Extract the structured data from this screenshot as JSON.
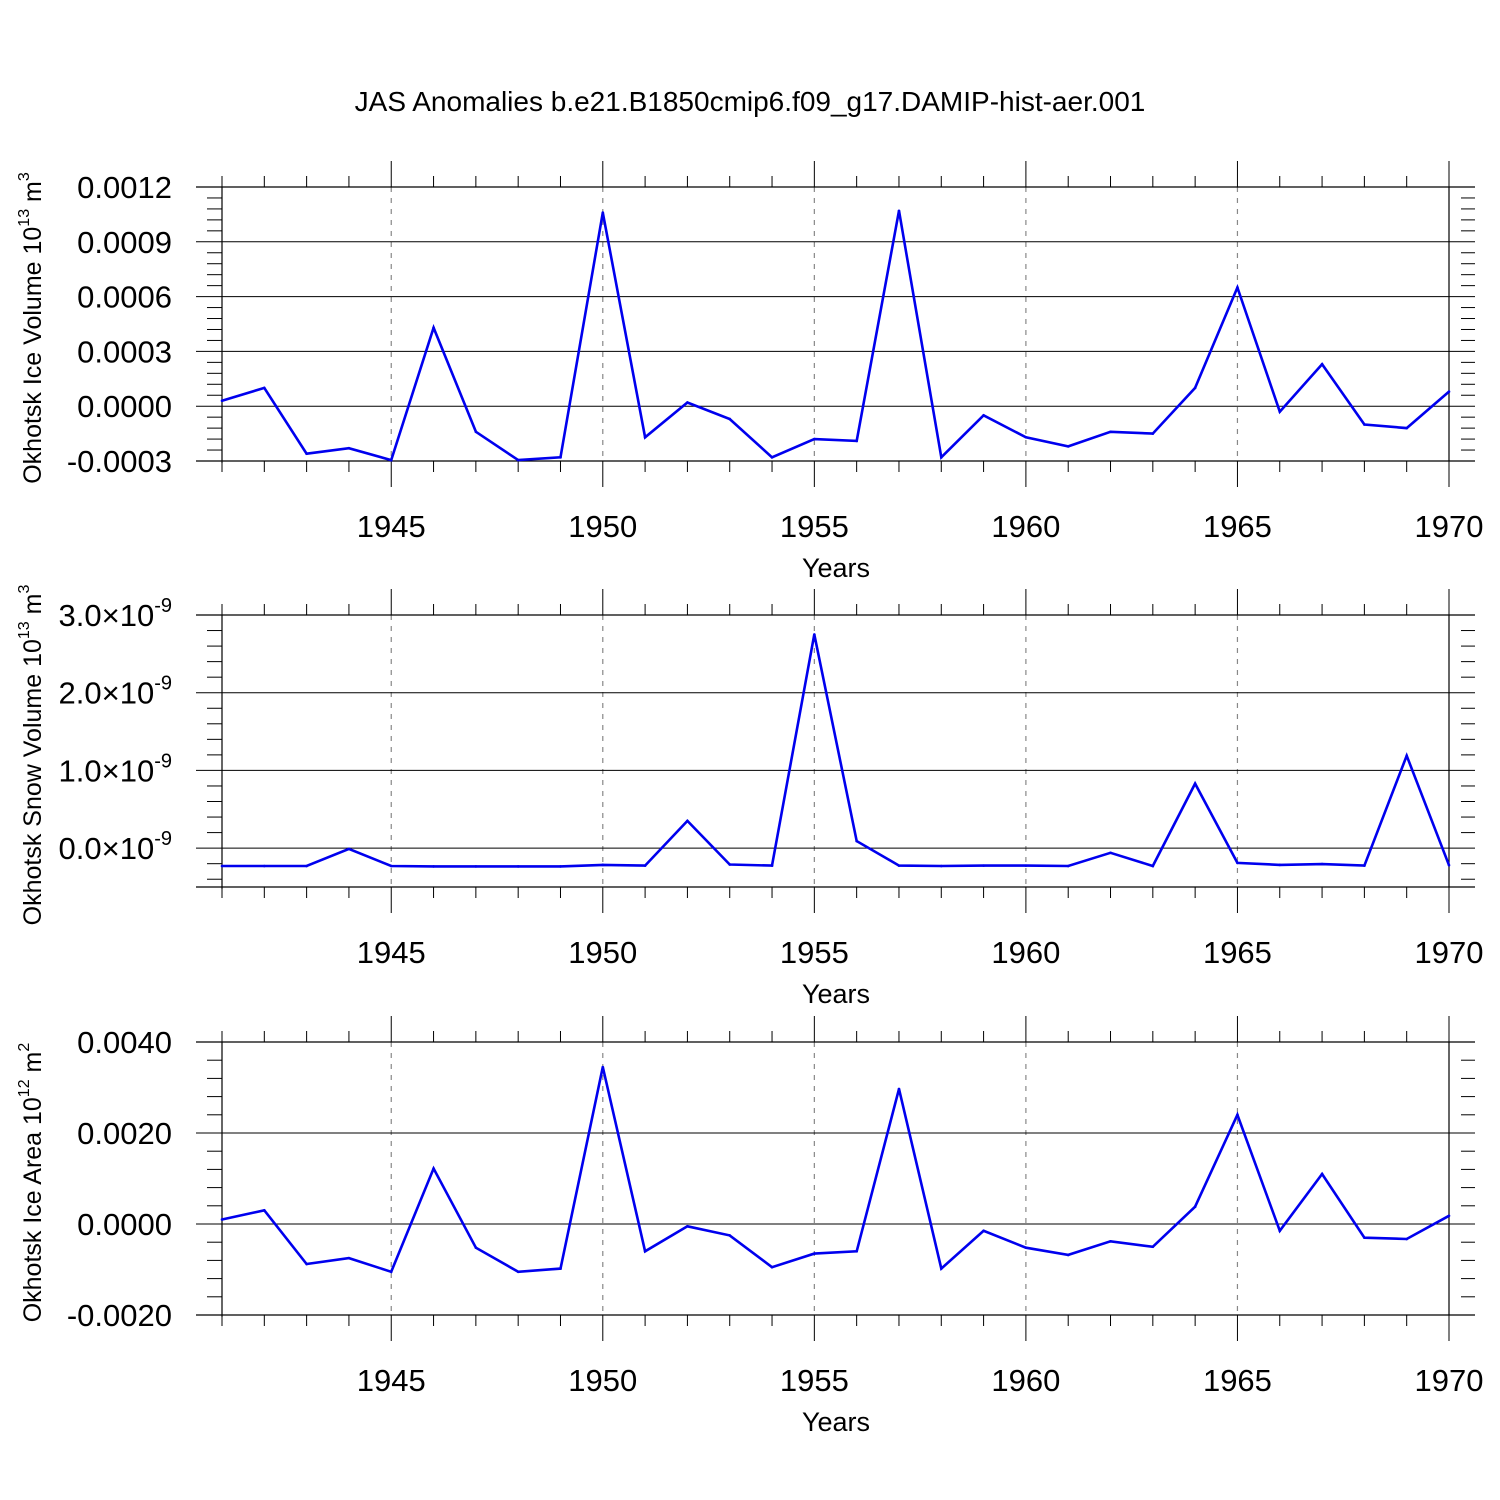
{
  "title": "JAS Anomalies b.e21.B1850cmip6.f09_g17.DAMIP-hist-aer.001",
  "colors": {
    "line": "#0000ee",
    "axis": "#000000",
    "grid": "#888888"
  },
  "chart_data": [
    {
      "type": "line",
      "ylabel": {
        "text": "Okhotsk Ice Volume 10",
        "sup": "13",
        "unit": " m",
        "unit_sup": "3"
      },
      "xlabel": "Years",
      "xlim": [
        1941,
        1970
      ],
      "ylim": [
        -0.0003,
        0.0012
      ],
      "yticks": [
        -0.0003,
        0,
        0.0003,
        0.0006,
        0.0009,
        0.0012
      ],
      "yticklabels": [
        "-0.0003",
        "0.0000",
        "0.0003",
        "0.0006",
        "0.0009",
        "0.0012"
      ],
      "xticks": [
        1945,
        1950,
        1955,
        1960,
        1965,
        1970
      ],
      "xticklabels": [
        "1945",
        "1950",
        "1955",
        "1960",
        "1965",
        "1970"
      ],
      "x": [
        1941,
        1942,
        1943,
        1944,
        1945,
        1946,
        1947,
        1948,
        1949,
        1950,
        1951,
        1952,
        1953,
        1954,
        1955,
        1956,
        1957,
        1958,
        1959,
        1960,
        1961,
        1962,
        1963,
        1964,
        1965,
        1966,
        1967,
        1968,
        1969,
        1970
      ],
      "values": [
        3e-05,
        0.0001,
        -0.00026,
        -0.00023,
        -0.000295,
        0.00043,
        -0.00014,
        -0.000295,
        -0.00028,
        0.00106,
        -0.00017,
        2e-05,
        -7e-05,
        -0.00028,
        -0.00018,
        -0.00019,
        0.00107,
        -0.00028,
        -5e-05,
        -0.00017,
        -0.00022,
        -0.00014,
        -0.00015,
        0.0001,
        0.00065,
        -3e-05,
        0.00023,
        -0.0001,
        -0.00012,
        8e-05
      ]
    },
    {
      "type": "line",
      "ylabel": {
        "text": "Okhotsk Snow Volume 10",
        "sup": "13",
        "unit": " m",
        "unit_sup": "3"
      },
      "xlabel": "Years",
      "xlim": [
        1941,
        1970
      ],
      "ylim": [
        -5e-10,
        3e-09
      ],
      "yticks": [
        0,
        1e-09,
        2e-09,
        3e-09
      ],
      "yticklabels": [
        {
          "mant": "0.0",
          "times": "×",
          "base": "10",
          "exp": "-9"
        },
        {
          "mant": "1.0",
          "times": "×",
          "base": "10",
          "exp": "-9"
        },
        {
          "mant": "2.0",
          "times": "×",
          "base": "10",
          "exp": "-9"
        },
        {
          "mant": "3.0",
          "times": "×",
          "base": "10",
          "exp": "-9"
        }
      ],
      "xticks": [
        1945,
        1950,
        1955,
        1960,
        1965,
        1970
      ],
      "xticklabels": [
        "1945",
        "1950",
        "1955",
        "1960",
        "1965",
        "1970"
      ],
      "x": [
        1941,
        1942,
        1943,
        1944,
        1945,
        1946,
        1947,
        1948,
        1949,
        1950,
        1951,
        1952,
        1953,
        1954,
        1955,
        1956,
        1957,
        1958,
        1959,
        1960,
        1961,
        1962,
        1963,
        1964,
        1965,
        1966,
        1967,
        1968,
        1969,
        1970
      ],
      "values": [
        -2.3e-10,
        -2.3e-10,
        -2.3e-10,
        -1e-11,
        -2.3e-10,
        -2.35e-10,
        -2.35e-10,
        -2.35e-10,
        -2.35e-10,
        -2.15e-10,
        -2.25e-10,
        3.5e-10,
        -2.1e-10,
        -2.25e-10,
        2.75e-09,
        9e-11,
        -2.25e-10,
        -2.3e-10,
        -2.25e-10,
        -2.25e-10,
        -2.3e-10,
        -6e-11,
        -2.3e-10,
        8.3e-10,
        -1.9e-10,
        -2.15e-10,
        -2.05e-10,
        -2.25e-10,
        1.19e-09,
        -2.2e-10
      ]
    },
    {
      "type": "line",
      "ylabel": {
        "text": "Okhotsk Ice Area 10",
        "sup": "12",
        "unit": " m",
        "unit_sup": "2"
      },
      "xlabel": "Years",
      "xlim": [
        1941,
        1970
      ],
      "ylim": [
        -0.002,
        0.004
      ],
      "yticks": [
        -0.002,
        0,
        0.002,
        0.004
      ],
      "yticklabels": [
        "-0.0020",
        "0.0000",
        "0.0020",
        "0.0040"
      ],
      "xticks": [
        1945,
        1950,
        1955,
        1960,
        1965,
        1970
      ],
      "xticklabels": [
        "1945",
        "1950",
        "1955",
        "1960",
        "1965",
        "1970"
      ],
      "x": [
        1941,
        1942,
        1943,
        1944,
        1945,
        1946,
        1947,
        1948,
        1949,
        1950,
        1951,
        1952,
        1953,
        1954,
        1955,
        1956,
        1957,
        1958,
        1959,
        1960,
        1961,
        1962,
        1963,
        1964,
        1965,
        1966,
        1967,
        1968,
        1969,
        1970
      ],
      "values": [
        0.0001,
        0.0003,
        -0.00088,
        -0.00075,
        -0.00105,
        0.00122,
        -0.00052,
        -0.00105,
        -0.00098,
        0.00345,
        -0.0006,
        -5e-05,
        -0.00025,
        -0.00095,
        -0.00065,
        -0.0006,
        0.00297,
        -0.00098,
        -0.00015,
        -0.00052,
        -0.00068,
        -0.00038,
        -0.0005,
        0.00038,
        0.0024,
        -0.00015,
        0.0011,
        -0.0003,
        -0.00033,
        0.00018
      ]
    }
  ]
}
